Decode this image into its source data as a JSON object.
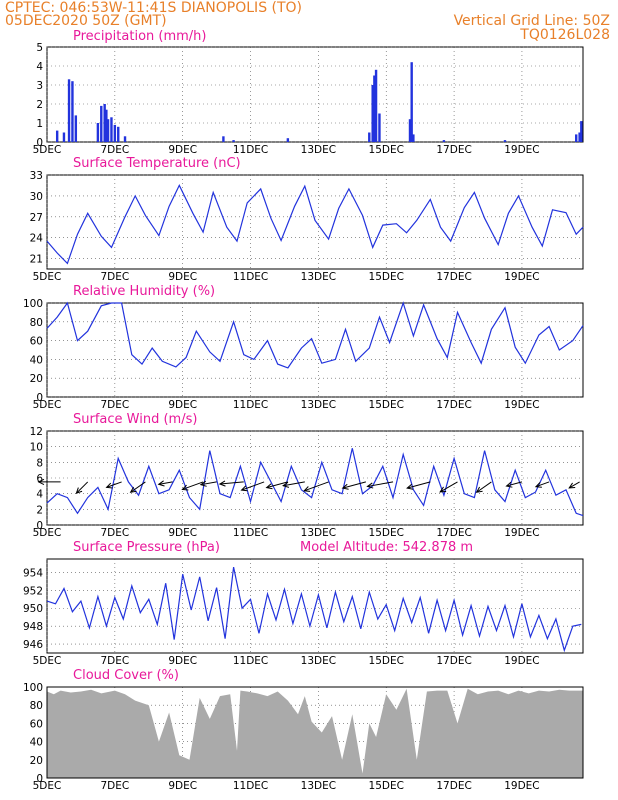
{
  "header": {
    "line1": "CPTEC:   046:53W-11:41S   DIANOPOLIS (TO)",
    "line2": "05DEC2020 50Z (GMT)",
    "grid_note": "Vertical Grid Line: 50Z",
    "code": "TQ0126L028"
  },
  "x_ticks": [
    "5DEC",
    "7DEC",
    "9DEC",
    "11DEC",
    "13DEC",
    "15DEC",
    "17DEC",
    "19DEC"
  ],
  "colors": {
    "header": "#e8802a",
    "title": "#e8199a",
    "series": "#2233dd",
    "cloud": "#aaaaaa",
    "wind_arrow": "#000000"
  },
  "chart_data": [
    {
      "type": "bar",
      "title": "Precipitation (mm/h)",
      "ylim": [
        0,
        5
      ],
      "y_ticks": [
        0,
        1,
        2,
        3,
        4,
        5
      ],
      "xlim_days": [
        5,
        20.8
      ],
      "x": [
        5.3,
        5.5,
        5.65,
        5.75,
        5.85,
        6.5,
        6.6,
        6.7,
        6.75,
        6.8,
        6.9,
        7.0,
        7.1,
        7.3,
        10.2,
        10.5,
        12.1,
        14.5,
        14.6,
        14.65,
        14.7,
        14.8,
        15.7,
        15.75,
        15.8,
        16.7,
        18.5,
        20.6,
        20.7,
        20.75
      ],
      "values": [
        0.6,
        0.5,
        3.3,
        3.2,
        1.4,
        1.0,
        1.9,
        2.0,
        1.7,
        1.2,
        1.3,
        0.9,
        0.8,
        0.3,
        0.3,
        0.1,
        0.2,
        0.5,
        3.0,
        3.5,
        3.8,
        1.5,
        1.2,
        4.2,
        0.4,
        0.1,
        0.1,
        0.4,
        0.5,
        1.1
      ]
    },
    {
      "type": "line",
      "title": "Surface Temperature (nC)",
      "ylim": [
        19.5,
        33
      ],
      "y_ticks": [
        21,
        24,
        27,
        30,
        33
      ],
      "x": [
        5.0,
        5.3,
        5.6,
        5.9,
        6.2,
        6.6,
        6.9,
        7.3,
        7.6,
        7.9,
        8.3,
        8.6,
        8.9,
        9.3,
        9.6,
        9.9,
        10.3,
        10.6,
        10.9,
        11.3,
        11.6,
        11.9,
        12.3,
        12.6,
        12.9,
        13.3,
        13.6,
        13.9,
        14.3,
        14.6,
        14.9,
        15.3,
        15.6,
        15.9,
        16.3,
        16.6,
        16.9,
        17.3,
        17.6,
        17.9,
        18.3,
        18.6,
        18.9,
        19.3,
        19.6,
        19.9,
        20.3,
        20.6,
        20.8
      ],
      "values": [
        23.5,
        21.8,
        20.3,
        24.5,
        27.5,
        24.2,
        22.6,
        27.0,
        30.0,
        27.2,
        24.3,
        28.5,
        31.5,
        27.5,
        24.8,
        30.5,
        25.5,
        23.5,
        29.0,
        31.0,
        26.8,
        23.6,
        28.5,
        31.4,
        26.5,
        23.8,
        28.2,
        31.0,
        27.2,
        22.6,
        25.8,
        26.0,
        24.7,
        26.5,
        29.5,
        25.5,
        23.5,
        28.3,
        30.5,
        26.8,
        23.0,
        27.5,
        30.0,
        25.5,
        22.8,
        28.0,
        27.6,
        24.5,
        25.5
      ]
    },
    {
      "type": "line",
      "title": "Relative Humidity (%)",
      "ylim": [
        0,
        100
      ],
      "y_ticks": [
        0,
        20,
        40,
        60,
        80,
        100
      ],
      "x": [
        5.0,
        5.3,
        5.6,
        5.9,
        6.2,
        6.6,
        6.9,
        7.2,
        7.5,
        7.8,
        8.1,
        8.4,
        8.8,
        9.1,
        9.4,
        9.8,
        10.1,
        10.5,
        10.8,
        11.1,
        11.5,
        11.8,
        12.1,
        12.5,
        12.8,
        13.1,
        13.5,
        13.8,
        14.1,
        14.5,
        14.8,
        15.1,
        15.5,
        15.8,
        16.1,
        16.5,
        16.8,
        17.1,
        17.5,
        17.8,
        18.1,
        18.5,
        18.8,
        19.1,
        19.5,
        19.8,
        20.1,
        20.5,
        20.8
      ],
      "values": [
        73,
        85,
        100,
        60,
        70,
        97,
        100,
        100,
        45,
        35,
        52,
        38,
        32,
        42,
        70,
        48,
        38,
        80,
        45,
        40,
        60,
        35,
        31,
        52,
        62,
        36,
        40,
        72,
        38,
        52,
        85,
        58,
        100,
        65,
        98,
        62,
        42,
        90,
        58,
        36,
        72,
        95,
        53,
        36,
        66,
        75,
        50,
        60,
        76
      ]
    },
    {
      "type": "line",
      "title": "Surface Wind (m/s)",
      "ylim": [
        0,
        12
      ],
      "y_ticks": [
        0,
        2,
        4,
        6,
        8,
        10,
        12
      ],
      "x": [
        5.0,
        5.3,
        5.6,
        5.9,
        6.2,
        6.5,
        6.8,
        7.1,
        7.4,
        7.7,
        8.0,
        8.3,
        8.6,
        8.9,
        9.2,
        9.5,
        9.8,
        10.1,
        10.4,
        10.7,
        11.0,
        11.3,
        11.6,
        11.9,
        12.2,
        12.5,
        12.8,
        13.1,
        13.4,
        13.7,
        14.0,
        14.3,
        14.6,
        14.9,
        15.2,
        15.5,
        15.8,
        16.1,
        16.4,
        16.7,
        17.0,
        17.3,
        17.6,
        17.9,
        18.2,
        18.5,
        18.8,
        19.1,
        19.4,
        19.7,
        20.0,
        20.3,
        20.6,
        20.8
      ],
      "values": [
        2.8,
        4.0,
        3.5,
        1.5,
        3.5,
        4.8,
        2.0,
        8.5,
        5.5,
        3.8,
        7.5,
        4.0,
        4.5,
        7.0,
        3.5,
        2.0,
        9.5,
        4.0,
        3.5,
        7.5,
        3.0,
        8.0,
        5.5,
        3.0,
        7.5,
        4.5,
        3.5,
        8.0,
        4.5,
        4.0,
        9.8,
        4.0,
        5.0,
        7.5,
        3.5,
        9.0,
        4.5,
        2.5,
        7.5,
        3.8,
        8.5,
        4.0,
        3.5,
        9.5,
        4.5,
        3.0,
        7.0,
        3.5,
        4.2,
        7.0,
        3.8,
        4.5,
        1.5,
        1.2
      ],
      "wind_vectors": [
        {
          "day": 5.4,
          "speed": 5.5,
          "dir_deg": 180
        },
        {
          "day": 6.2,
          "speed": 4.0,
          "dir_deg": 225
        },
        {
          "day": 7.2,
          "speed": 4.0,
          "dir_deg": 200
        },
        {
          "day": 7.9,
          "speed": 4.5,
          "dir_deg": 215
        },
        {
          "day": 8.7,
          "speed": 3.5,
          "dir_deg": 190
        },
        {
          "day": 9.6,
          "speed": 5.5,
          "dir_deg": 200
        },
        {
          "day": 10.0,
          "speed": 4.0,
          "dir_deg": 190
        },
        {
          "day": 10.8,
          "speed": 6.0,
          "dir_deg": 185
        },
        {
          "day": 11.4,
          "speed": 6.0,
          "dir_deg": 200
        },
        {
          "day": 12.1,
          "speed": 5.5,
          "dir_deg": 195
        },
        {
          "day": 12.6,
          "speed": 5.5,
          "dir_deg": 190
        },
        {
          "day": 13.3,
          "speed": 6.5,
          "dir_deg": 200
        },
        {
          "day": 14.4,
          "speed": 6.0,
          "dir_deg": 195
        },
        {
          "day": 15.2,
          "speed": 6.5,
          "dir_deg": 190
        },
        {
          "day": 16.3,
          "speed": 6.0,
          "dir_deg": 195
        },
        {
          "day": 17.1,
          "speed": 5.0,
          "dir_deg": 210
        },
        {
          "day": 18.1,
          "speed": 4.5,
          "dir_deg": 215
        },
        {
          "day": 19.0,
          "speed": 4.0,
          "dir_deg": 195
        },
        {
          "day": 19.8,
          "speed": 3.5,
          "dir_deg": 200
        },
        {
          "day": 20.7,
          "speed": 3.0,
          "dir_deg": 210
        }
      ]
    },
    {
      "type": "line",
      "title": "Surface Pressure (hPa)",
      "model_altitude": "Model Altitude: 542.878 m",
      "ylim": [
        945,
        955.5
      ],
      "y_ticks": [
        946,
        948,
        950,
        952,
        954
      ],
      "x": [
        5.0,
        5.25,
        5.5,
        5.75,
        6.0,
        6.25,
        6.5,
        6.75,
        7.0,
        7.25,
        7.5,
        7.75,
        8.0,
        8.25,
        8.5,
        8.75,
        9.0,
        9.25,
        9.5,
        9.75,
        10.0,
        10.25,
        10.5,
        10.75,
        11.0,
        11.25,
        11.5,
        11.75,
        12.0,
        12.25,
        12.5,
        12.75,
        13.0,
        13.25,
        13.5,
        13.75,
        14.0,
        14.25,
        14.5,
        14.75,
        15.0,
        15.25,
        15.5,
        15.75,
        16.0,
        16.25,
        16.5,
        16.75,
        17.0,
        17.25,
        17.5,
        17.75,
        18.0,
        18.25,
        18.5,
        18.75,
        19.0,
        19.25,
        19.5,
        19.75,
        20.0,
        20.25,
        20.5,
        20.75
      ],
      "values": [
        950.8,
        950.5,
        952.2,
        949.6,
        950.8,
        947.8,
        951.3,
        948.0,
        951.2,
        948.8,
        952.5,
        949.5,
        951.0,
        948.2,
        952.8,
        946.5,
        953.8,
        949.8,
        953.5,
        948.6,
        952.3,
        946.6,
        954.6,
        950.0,
        951.0,
        947.2,
        951.6,
        948.7,
        952.1,
        948.3,
        951.6,
        948.0,
        951.5,
        947.8,
        951.8,
        948.5,
        951.3,
        947.7,
        951.8,
        948.8,
        950.4,
        947.5,
        951.1,
        948.4,
        951.2,
        947.2,
        950.9,
        947.5,
        950.9,
        947.0,
        950.3,
        946.9,
        950.2,
        947.5,
        950.3,
        946.8,
        950.5,
        946.8,
        949.2,
        946.6,
        948.8,
        945.3,
        948.0,
        948.2
      ]
    },
    {
      "type": "area",
      "title": "Cloud Cover (%)",
      "ylim": [
        0,
        100
      ],
      "y_ticks": [
        0,
        20,
        40,
        60,
        80,
        100
      ],
      "x": [
        5.0,
        5.2,
        5.4,
        5.7,
        6.0,
        6.3,
        6.6,
        7.0,
        7.3,
        7.6,
        8.0,
        8.3,
        8.6,
        8.9,
        9.2,
        9.5,
        9.8,
        10.1,
        10.4,
        10.6,
        10.7,
        10.9,
        11.2,
        11.5,
        11.8,
        12.1,
        12.4,
        12.6,
        12.8,
        13.1,
        13.4,
        13.7,
        14.0,
        14.3,
        14.5,
        14.7,
        15.0,
        15.3,
        15.6,
        15.9,
        16.2,
        16.5,
        16.8,
        17.1,
        17.4,
        17.7,
        18.0,
        18.3,
        18.6,
        18.9,
        19.2,
        19.5,
        19.8,
        20.1,
        20.4,
        20.8
      ],
      "values": [
        95,
        92,
        96,
        94,
        95,
        97,
        93,
        96,
        92,
        85,
        80,
        40,
        72,
        25,
        20,
        88,
        65,
        90,
        92,
        30,
        96,
        95,
        93,
        90,
        95,
        85,
        70,
        90,
        62,
        50,
        68,
        20,
        70,
        5,
        60,
        45,
        92,
        75,
        98,
        20,
        95,
        96,
        96,
        60,
        98,
        92,
        95,
        96,
        92,
        96,
        93,
        96,
        95,
        97,
        96,
        96
      ]
    }
  ]
}
